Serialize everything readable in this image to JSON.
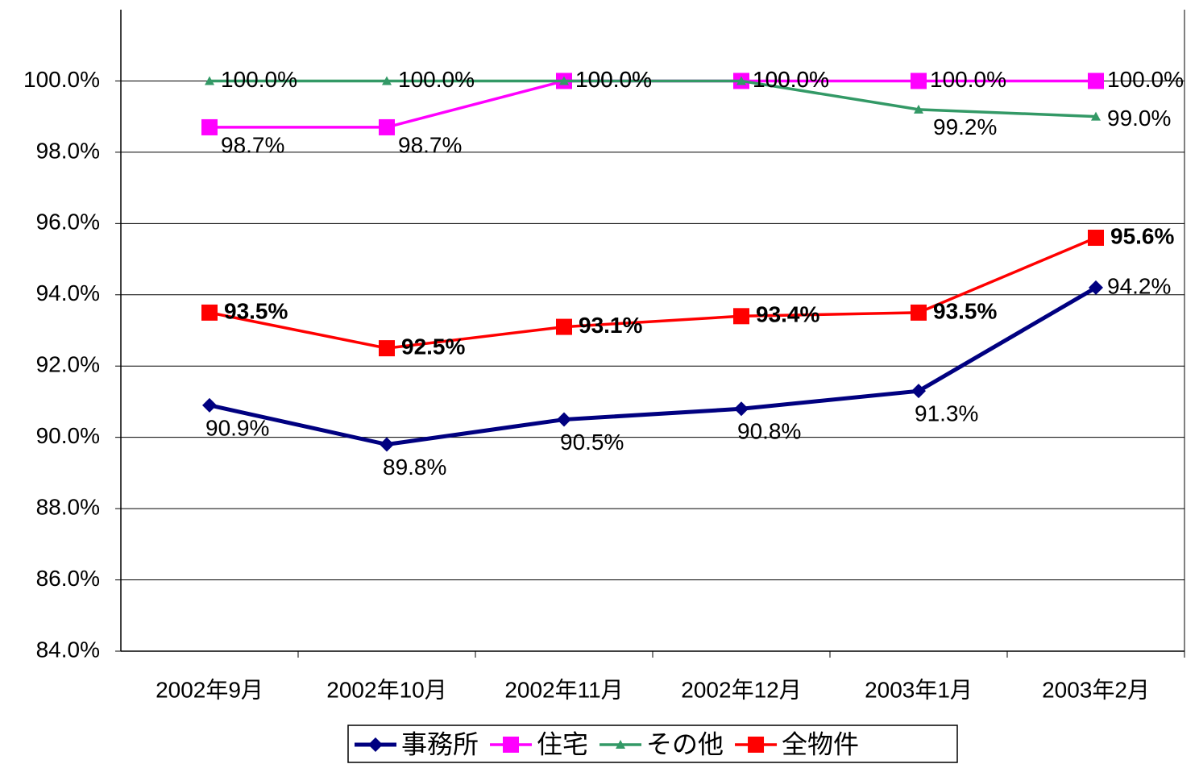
{
  "chart_data": {
    "type": "line",
    "categories": [
      "2002年9月",
      "2002年10月",
      "2002年11月",
      "2002年12月",
      "2003年1月",
      "2003年2月"
    ],
    "series": [
      {
        "name": "事務所",
        "color": "#000080",
        "marker": "diamond",
        "values": [
          90.9,
          89.8,
          90.5,
          90.8,
          91.3,
          94.2
        ],
        "value_labels": [
          "90.9%",
          "89.8%",
          "90.5%",
          "90.8%",
          "91.3%",
          "94.2%"
        ]
      },
      {
        "name": "住宅",
        "color": "#ff00ff",
        "marker": "square",
        "values": [
          98.7,
          98.7,
          100,
          100,
          100,
          100
        ],
        "value_labels": [
          "98.7%",
          "98.7%",
          "100.0%",
          "100.0%",
          "100.0%",
          "100.0%"
        ]
      },
      {
        "name": "その他",
        "color": "#339966",
        "marker": "triangle",
        "values": [
          100,
          100,
          100,
          100,
          99.2,
          99.0
        ],
        "value_labels": [
          "100.0%",
          "100.0%",
          "100.0%",
          "100.0%",
          "99.2%",
          "99.0%"
        ]
      },
      {
        "name": "全物件",
        "color": "#ff0000",
        "marker": "square",
        "values": [
          93.5,
          92.5,
          93.1,
          93.4,
          93.5,
          95.6
        ],
        "value_labels": [
          "93.5%",
          "92.5%",
          "93.1%",
          "93.4%",
          "93.5%",
          "95.6%"
        ]
      }
    ],
    "ylim": [
      84,
      102
    ],
    "yticks": [
      {
        "value": 84,
        "label": "84.0%"
      },
      {
        "value": 86,
        "label": "86.0%"
      },
      {
        "value": 88,
        "label": "88.0%"
      },
      {
        "value": 90,
        "label": "90.0%"
      },
      {
        "value": 92,
        "label": "92.0%"
      },
      {
        "value": 94,
        "label": "94.0%"
      },
      {
        "value": 96,
        "label": "96.0%"
      },
      {
        "value": 98,
        "label": "98.0%"
      },
      {
        "value": 100,
        "label": "100.0%"
      }
    ],
    "grid": true,
    "legend": "bottom"
  }
}
